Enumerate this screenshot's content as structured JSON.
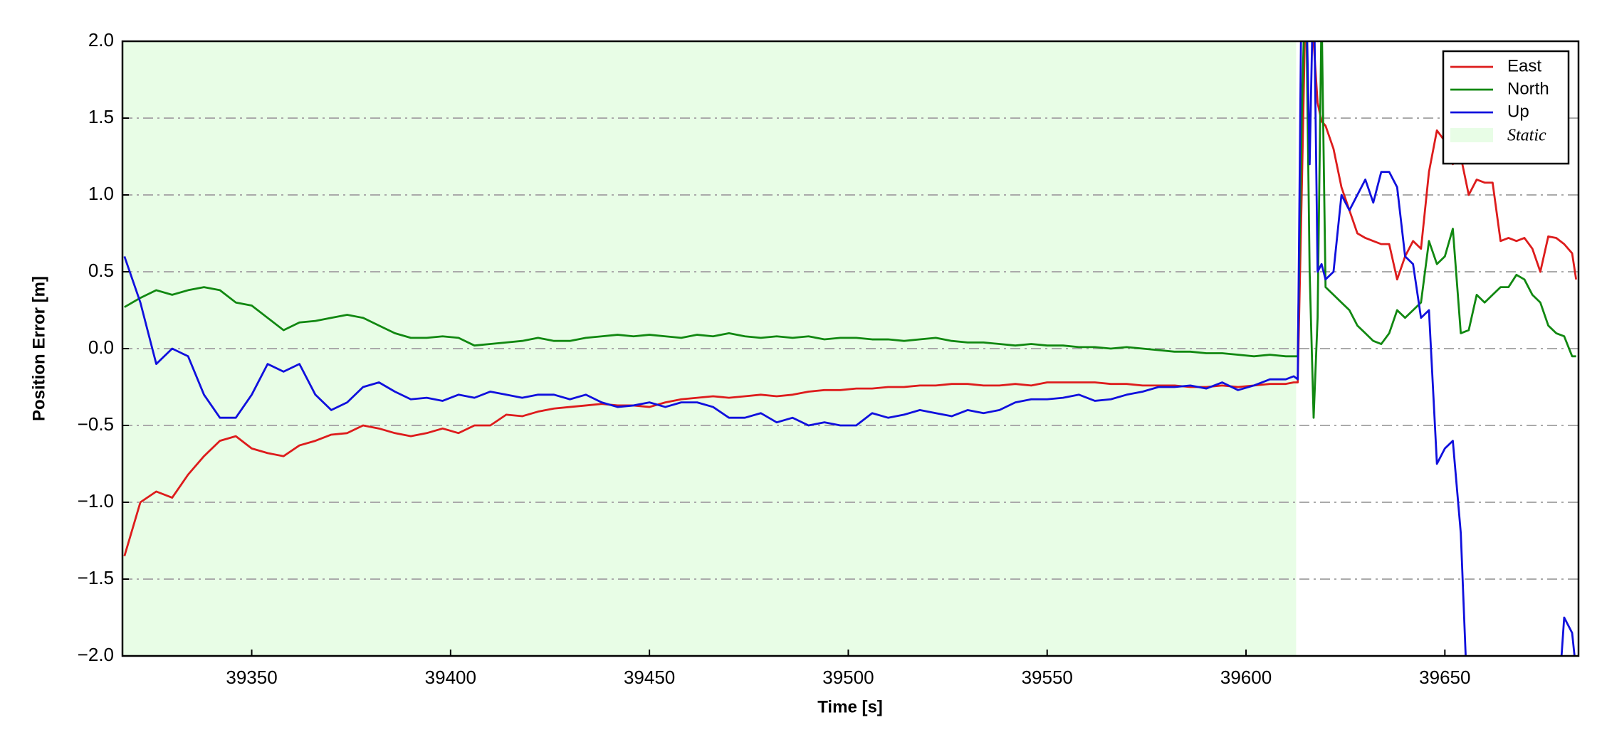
{
  "chart_data": {
    "type": "line",
    "xlabel": "Time [s]",
    "ylabel": "Position Error [m]",
    "xlim": [
      39317.5,
      39683.6
    ],
    "ylim": [
      -2.0,
      2.0
    ],
    "xticks": [
      39350,
      39400,
      39450,
      39500,
      39550,
      39600,
      39650
    ],
    "yticks": [
      {
        "value": -2.0,
        "label": "−2.0"
      },
      {
        "value": -1.5,
        "label": "−1.5"
      },
      {
        "value": -1.0,
        "label": "−1.0"
      },
      {
        "value": -0.5,
        "label": "−0.5"
      },
      {
        "value": 0.0,
        "label": "0.0"
      },
      0.5,
      {
        "value": 1.0,
        "label": "1.0"
      },
      1.5,
      {
        "value": 2.0,
        "label": "2.0"
      }
    ],
    "grid": true,
    "legend": "upper right",
    "spans": [
      {
        "name": "Static",
        "xlim": [
          39317.5,
          39612.6
        ],
        "color": "#e8fde6"
      }
    ],
    "x": [
      39318,
      39322,
      39326,
      39330,
      39334,
      39338,
      39342,
      39346,
      39350,
      39354,
      39358,
      39362,
      39366,
      39370,
      39374,
      39378,
      39382,
      39386,
      39390,
      39394,
      39398,
      39402,
      39406,
      39410,
      39414,
      39418,
      39422,
      39426,
      39430,
      39434,
      39438,
      39442,
      39446,
      39450,
      39454,
      39458,
      39462,
      39466,
      39470,
      39474,
      39478,
      39482,
      39486,
      39490,
      39494,
      39498,
      39502,
      39506,
      39510,
      39514,
      39518,
      39522,
      39526,
      39530,
      39534,
      39538,
      39542,
      39546,
      39550,
      39554,
      39558,
      39562,
      39566,
      39570,
      39574,
      39578,
      39582,
      39586,
      39590,
      39594,
      39598,
      39602,
      39606,
      39610,
      39612,
      39613,
      39614,
      39615,
      39616,
      39617,
      39618,
      39619,
      39620,
      39622,
      39624,
      39626,
      39628,
      39630,
      39632,
      39634,
      39636,
      39638,
      39640,
      39642,
      39644,
      39646,
      39648,
      39650,
      39652,
      39654,
      39656,
      39658,
      39660,
      39662,
      39664,
      39666,
      39668,
      39670,
      39672,
      39674,
      39676,
      39678,
      39680,
      39682,
      39683
    ],
    "series": [
      {
        "name": "East",
        "color": "#dd1c1c",
        "values": [
          -1.35,
          -1.0,
          -0.93,
          -0.97,
          -0.82,
          -0.7,
          -0.6,
          -0.57,
          -0.65,
          -0.68,
          -0.7,
          -0.63,
          -0.6,
          -0.56,
          -0.55,
          -0.5,
          -0.52,
          -0.55,
          -0.57,
          -0.55,
          -0.52,
          -0.55,
          -0.5,
          -0.5,
          -0.43,
          -0.44,
          -0.41,
          -0.39,
          -0.38,
          -0.37,
          -0.36,
          -0.37,
          -0.37,
          -0.38,
          -0.35,
          -0.33,
          -0.32,
          -0.31,
          -0.32,
          -0.31,
          -0.3,
          -0.31,
          -0.3,
          -0.28,
          -0.27,
          -0.27,
          -0.26,
          -0.26,
          -0.25,
          -0.25,
          -0.24,
          -0.24,
          -0.23,
          -0.23,
          -0.24,
          -0.24,
          -0.23,
          -0.24,
          -0.22,
          -0.22,
          -0.22,
          -0.22,
          -0.23,
          -0.23,
          -0.24,
          -0.24,
          -0.24,
          -0.25,
          -0.25,
          -0.24,
          -0.25,
          -0.24,
          -0.23,
          -0.23,
          -0.22,
          -0.22,
          1.0,
          2.3,
          2.5,
          2.0,
          1.6,
          1.48,
          1.45,
          1.3,
          1.05,
          0.9,
          0.75,
          0.72,
          0.7,
          0.68,
          0.68,
          0.45,
          0.6,
          0.7,
          0.65,
          1.15,
          1.42,
          1.35,
          1.2,
          1.25,
          1.0,
          1.1,
          1.08,
          1.08,
          0.7,
          0.72,
          0.7,
          0.72,
          0.65,
          0.5,
          0.73,
          0.72,
          0.68,
          0.62,
          0.45
        ]
      },
      {
        "name": "North",
        "color": "#118811",
        "values": [
          0.27,
          0.33,
          0.38,
          0.35,
          0.38,
          0.4,
          0.38,
          0.3,
          0.28,
          0.2,
          0.12,
          0.17,
          0.18,
          0.2,
          0.22,
          0.2,
          0.15,
          0.1,
          0.07,
          0.07,
          0.08,
          0.07,
          0.02,
          0.03,
          0.04,
          0.05,
          0.07,
          0.05,
          0.05,
          0.07,
          0.08,
          0.09,
          0.08,
          0.09,
          0.08,
          0.07,
          0.09,
          0.08,
          0.1,
          0.08,
          0.07,
          0.08,
          0.07,
          0.08,
          0.06,
          0.07,
          0.07,
          0.06,
          0.06,
          0.05,
          0.06,
          0.07,
          0.05,
          0.04,
          0.04,
          0.03,
          0.02,
          0.03,
          0.02,
          0.02,
          0.01,
          0.01,
          0.0,
          0.01,
          0.0,
          -0.01,
          -0.02,
          -0.02,
          -0.03,
          -0.03,
          -0.04,
          -0.05,
          -0.04,
          -0.05,
          -0.05,
          -0.05,
          1.5,
          2.5,
          0.5,
          -0.45,
          0.2,
          2.2,
          0.4,
          0.35,
          0.3,
          0.25,
          0.15,
          0.1,
          0.05,
          0.03,
          0.1,
          0.25,
          0.2,
          0.25,
          0.3,
          0.7,
          0.55,
          0.6,
          0.78,
          0.1,
          0.12,
          0.35,
          0.3,
          0.35,
          0.4,
          0.4,
          0.48,
          0.45,
          0.35,
          0.3,
          0.15,
          0.1,
          0.08,
          -0.05,
          -0.05
        ]
      },
      {
        "name": "Up",
        "color": "#1010dd",
        "values": [
          0.6,
          0.3,
          -0.1,
          0.0,
          -0.05,
          -0.3,
          -0.45,
          -0.45,
          -0.3,
          -0.1,
          -0.15,
          -0.1,
          -0.3,
          -0.4,
          -0.35,
          -0.25,
          -0.22,
          -0.28,
          -0.33,
          -0.32,
          -0.34,
          -0.3,
          -0.32,
          -0.28,
          -0.3,
          -0.32,
          -0.3,
          -0.3,
          -0.33,
          -0.3,
          -0.35,
          -0.38,
          -0.37,
          -0.35,
          -0.38,
          -0.35,
          -0.35,
          -0.38,
          -0.45,
          -0.45,
          -0.42,
          -0.48,
          -0.45,
          -0.5,
          -0.48,
          -0.5,
          -0.5,
          -0.42,
          -0.45,
          -0.43,
          -0.4,
          -0.42,
          -0.44,
          -0.4,
          -0.42,
          -0.4,
          -0.35,
          -0.33,
          -0.33,
          -0.32,
          -0.3,
          -0.34,
          -0.33,
          -0.3,
          -0.28,
          -0.25,
          -0.25,
          -0.24,
          -0.26,
          -0.22,
          -0.27,
          -0.24,
          -0.2,
          -0.2,
          -0.18,
          -0.2,
          2.5,
          2.5,
          1.2,
          2.5,
          0.5,
          0.55,
          0.45,
          0.5,
          1.0,
          0.9,
          1.0,
          1.1,
          0.95,
          1.15,
          1.15,
          1.05,
          0.6,
          0.55,
          0.2,
          0.25,
          -0.75,
          -0.65,
          -0.6,
          -1.2,
          -2.5,
          null,
          null,
          null,
          null,
          null,
          null,
          null,
          null,
          null,
          null,
          -2.5,
          -1.75,
          -1.85,
          -2.1
        ]
      }
    ]
  }
}
